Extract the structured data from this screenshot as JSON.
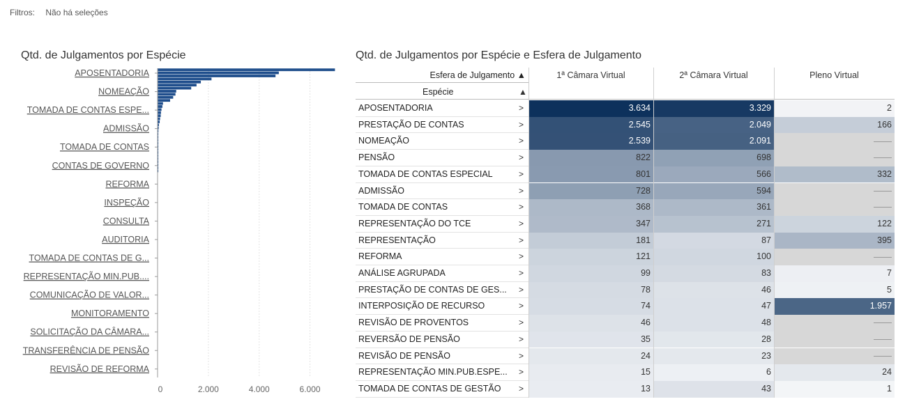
{
  "filters": {
    "label": "Filtros:",
    "value": "Não há seleções"
  },
  "bar_chart_title": "Qtd. de Julgamentos por Espécie",
  "table_title": "Qtd. de Julgamentos por Espécie e Esfera de Julgamento",
  "chart_data": [
    {
      "type": "bar",
      "orientation": "horizontal",
      "title": "Qtd. de Julgamentos por Espécie",
      "xlim": [
        0,
        7000
      ],
      "xticks": [
        0,
        2000,
        4000,
        6000
      ],
      "xtick_labels": [
        "0",
        "2.000",
        "4.000",
        "6.000"
      ],
      "labeled_categories": [
        "APOSENTADORIA",
        "NOMEAÇÃO",
        "TOMADA DE CONTAS ESPE...",
        "ADMISSÃO",
        "TOMADA DE CONTAS",
        "CONTAS DE GOVERNO",
        "REFORMA",
        "INSPEÇÃO",
        "CONSULTA",
        "AUDITORIA",
        "TOMADA DE CONTAS DE G...",
        "REPRESENTAÇÃO MIN.PUB....",
        "COMUNICAÇÃO DE VALOR...",
        "MONITORAMENTO",
        "SOLICITAÇÃO DA CÂMARA...",
        "TRANSFERÊNCIA DE PENSÃO",
        "REVISÃO DE REFORMA"
      ],
      "values": [
        6970,
        4760,
        4630,
        2110,
        1690,
        1520,
        1310,
        720,
        690,
        600,
        480,
        200,
        175,
        140,
        120,
        110,
        85,
        70,
        40,
        30,
        20,
        15,
        10,
        6,
        4,
        3,
        2,
        2,
        1,
        1,
        1,
        1,
        1,
        1
      ]
    },
    {
      "type": "table",
      "title": "Qtd. de Julgamentos por Espécie e Esfera de Julgamento",
      "column_header_label": "Esfera de Julgamento",
      "row_header_label": "Espécie",
      "sort_glyph": "▲",
      "row_arrow": ">",
      "columns": [
        "1ª Câmara Virtual",
        "2ª Câmara Virtual",
        "Pleno Virtual"
      ],
      "rows": [
        {
          "label": "APOSENTADORIA",
          "values": [
            "3.634",
            "3.329",
            "2"
          ],
          "n": [
            3634,
            3329,
            2
          ]
        },
        {
          "label": "PRESTAÇÃO DE CONTAS",
          "values": [
            "2.545",
            "2.049",
            "166"
          ],
          "n": [
            2545,
            2049,
            166
          ]
        },
        {
          "label": "NOMEAÇÃO",
          "values": [
            "2.539",
            "2.091",
            ""
          ],
          "n": [
            2539,
            2091,
            null
          ]
        },
        {
          "label": "PENSÃO",
          "values": [
            "822",
            "698",
            ""
          ],
          "n": [
            822,
            698,
            null
          ]
        },
        {
          "label": "TOMADA DE CONTAS ESPECIAL",
          "values": [
            "801",
            "566",
            "332"
          ],
          "n": [
            801,
            566,
            332
          ]
        },
        {
          "label": "ADMISSÃO",
          "values": [
            "728",
            "594",
            ""
          ],
          "n": [
            728,
            594,
            null
          ]
        },
        {
          "label": "TOMADA DE CONTAS",
          "values": [
            "368",
            "361",
            ""
          ],
          "n": [
            368,
            361,
            null
          ]
        },
        {
          "label": "REPRESENTAÇÃO DO TCE",
          "values": [
            "347",
            "271",
            "122"
          ],
          "n": [
            347,
            271,
            122
          ]
        },
        {
          "label": "REPRESENTAÇÃO",
          "values": [
            "181",
            "87",
            "395"
          ],
          "n": [
            181,
            87,
            395
          ]
        },
        {
          "label": "REFORMA",
          "values": [
            "121",
            "100",
            ""
          ],
          "n": [
            121,
            100,
            null
          ]
        },
        {
          "label": "ANÁLISE AGRUPADA",
          "values": [
            "99",
            "83",
            "7"
          ],
          "n": [
            99,
            83,
            7
          ]
        },
        {
          "label": "PRESTAÇÃO DE CONTAS DE GES...",
          "values": [
            "78",
            "46",
            "5"
          ],
          "n": [
            78,
            46,
            5
          ]
        },
        {
          "label": "INTERPOSIÇÃO DE RECURSO",
          "values": [
            "74",
            "47",
            "1.957"
          ],
          "n": [
            74,
            47,
            1957
          ]
        },
        {
          "label": "REVISÃO DE PROVENTOS",
          "values": [
            "46",
            "48",
            ""
          ],
          "n": [
            46,
            48,
            null
          ]
        },
        {
          "label": "REVERSÃO DE PENSÃO",
          "values": [
            "35",
            "28",
            ""
          ],
          "n": [
            35,
            28,
            null
          ]
        },
        {
          "label": "REVISÃO DE PENSÃO",
          "values": [
            "24",
            "23",
            ""
          ],
          "n": [
            24,
            23,
            null
          ]
        },
        {
          "label": "REPRESENTAÇÃO MIN.PUB.ESPE...",
          "values": [
            "15",
            "6",
            "24"
          ],
          "n": [
            15,
            6,
            24
          ]
        },
        {
          "label": "TOMADA DE CONTAS DE GESTÃO",
          "values": [
            "13",
            "43",
            "1"
          ],
          "n": [
            13,
            43,
            1
          ]
        }
      ]
    }
  ],
  "colors": {
    "bar": "#1f4e8c",
    "heat_max": "#0b2f5b",
    "heat_min": "#f7f8fa",
    "null_cell": "#d7d7d7"
  }
}
